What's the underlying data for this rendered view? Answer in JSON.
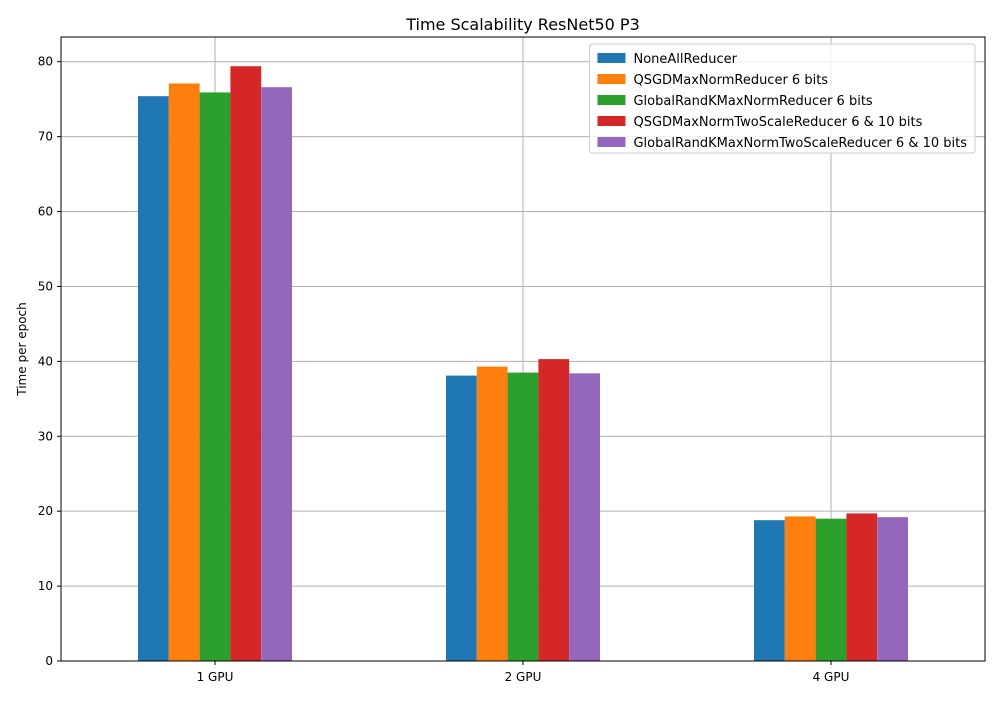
{
  "chart_data": {
    "type": "bar",
    "title": "Time Scalability ResNet50 P3",
    "xlabel": "",
    "ylabel": "Time per epoch",
    "categories": [
      "1 GPU",
      "2 GPU",
      "4 GPU"
    ],
    "ylim": [
      0,
      83.3
    ],
    "yticks": [
      0,
      10,
      20,
      30,
      40,
      50,
      60,
      70,
      80
    ],
    "grid": true,
    "legend_position": "top-right",
    "series": [
      {
        "name": "NoneAllReducer",
        "color": "#1f77b4",
        "values": [
          75.4,
          38.1,
          18.8
        ]
      },
      {
        "name": "QSGDMaxNormReducer 6 bits",
        "color": "#ff7f0e",
        "values": [
          77.1,
          39.3,
          19.3
        ]
      },
      {
        "name": "GlobalRandKMaxNormReducer 6 bits",
        "color": "#2ca02c",
        "values": [
          75.9,
          38.5,
          19.0
        ]
      },
      {
        "name": "QSGDMaxNormTwoScaleReducer 6 & 10 bits",
        "color": "#d62728",
        "values": [
          79.4,
          40.3,
          19.7
        ]
      },
      {
        "name": "GlobalRandKMaxNormTwoScaleReducer 6 & 10 bits",
        "color": "#9467bd",
        "values": [
          76.6,
          38.4,
          19.2
        ]
      }
    ]
  }
}
